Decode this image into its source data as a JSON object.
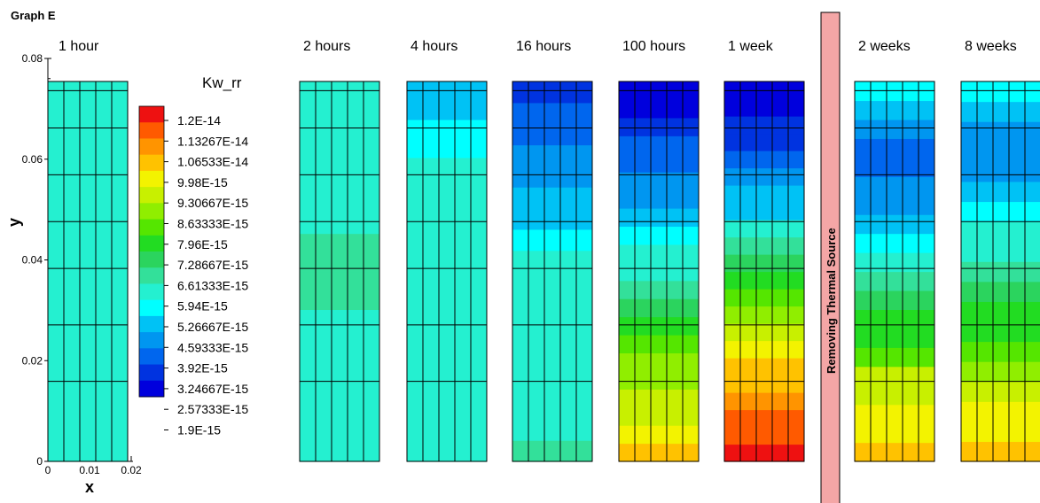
{
  "figure_label": "Graph E",
  "chart_data": {
    "type": "heatmap",
    "title": "",
    "xlabel": "x",
    "ylabel": "y",
    "xlim": [
      0,
      0.02
    ],
    "ylim": [
      0,
      0.08
    ],
    "x_ticks": [
      "0",
      "0.01",
      "0.02"
    ],
    "y_ticks": [
      "0",
      "0.02",
      "0.04",
      "0.06",
      "0.08"
    ],
    "y_tick_values": [
      0,
      0.02,
      0.04,
      0.06,
      0.08
    ],
    "mesh_y_lines": [
      0.0159,
      0.0271,
      0.0383,
      0.0476,
      0.0569,
      0.0662,
      0.0736
    ],
    "mesh_x_lines": [
      0.004,
      0.008,
      0.012,
      0.016
    ],
    "colorbar": {
      "title": "Kw_rr",
      "levels": [
        "1.2E-14",
        "1.13267E-14",
        "1.06533E-14",
        "9.98E-15",
        "9.30667E-15",
        "8.63333E-15",
        "7.96E-15",
        "7.28667E-15",
        "6.61333E-15",
        "5.94E-15",
        "5.26667E-15",
        "4.59333E-15",
        "3.92E-15",
        "3.24667E-15",
        "2.57333E-15",
        "1.9E-15"
      ],
      "colors": [
        "#ee1111",
        "#ff5a00",
        "#ff9400",
        "#ffc200",
        "#f3f300",
        "#c8f000",
        "#90ee00",
        "#55e600",
        "#22dc22",
        "#2bd45e",
        "#33e09a",
        "#24f0d0",
        "#00ffff",
        "#00c2f5",
        "#0096f0",
        "#0066ee",
        "#0033e0",
        "#0000dd"
      ]
    },
    "separator_label": "Removing Thermal Source",
    "panels": [
      {
        "label": "1 hour",
        "values": [
          5.5e-15,
          5.7e-15,
          5.7e-15,
          5.7e-15,
          5.7e-15,
          5.7e-15,
          5.7e-15,
          5.7e-15,
          5.7e-15,
          5.7e-15
        ]
      },
      {
        "label": "2 hours",
        "values": [
          5.6e-15,
          5.7e-15,
          5.7e-15,
          5.7e-15,
          5.9e-15,
          5.9e-15,
          5.7e-15,
          5.7e-15,
          5.7e-15,
          5.5e-15
        ]
      },
      {
        "label": "4 hours",
        "values": [
          5.6e-15,
          5.6e-15,
          5.7e-15,
          5.7e-15,
          5.6e-15,
          5.6e-15,
          5.5e-15,
          5.2e-15,
          5e-15,
          4.4e-15
        ]
      },
      {
        "label": "16 hours",
        "values": [
          6.2e-15,
          5.7e-15,
          5.6e-15,
          5.6e-15,
          5.5e-15,
          5.5e-15,
          5.5e-15,
          5.5e-15,
          5.5e-15,
          5.5e-15,
          4.6e-15,
          4.4e-15,
          4.4e-15,
          3.9e-15,
          3.5e-15,
          3.3e-15,
          2.9e-15,
          2.5e-15
        ]
      },
      {
        "label": "100 hours",
        "values": [
          1.03e-14,
          9.6e-15,
          9.3e-15,
          9e-15,
          8.6e-15,
          8.2e-15,
          7.7e-15,
          7.2e-15,
          6.5e-15,
          6.1e-15,
          5.5e-15,
          5.2e-15,
          4.6e-15,
          4.3e-15,
          3.8e-15,
          3.5e-15,
          3e-15,
          2.9e-15,
          2.6e-15,
          2.1e-15,
          1.9e-15
        ]
      },
      {
        "label": "1 week",
        "values": [
          1.2e-14,
          1.13e-14,
          1.13e-14,
          1.08e-14,
          1.05e-14,
          1.02e-14,
          9.6e-15,
          9e-15,
          8.5e-15,
          7.8e-15,
          7.2e-15,
          6.5e-15,
          5.8e-15,
          5.2e-15,
          4.5e-15,
          4.1e-15,
          3.6e-15,
          3.3e-15,
          2.7e-15,
          2.4e-15,
          2e-15,
          1.9e-15
        ]
      },
      {
        "label": "2 weeks",
        "values": [
          1e-14,
          9.8e-15,
          9.4e-15,
          9.2e-15,
          8.8e-15,
          8e-15,
          7.5e-15,
          7e-15,
          6.5e-15,
          6e-15,
          5.6e-15,
          5e-15,
          4.4e-15,
          3.9e-15,
          3.5e-15,
          3.2e-15,
          3.3e-15,
          3.6e-15,
          4e-15,
          4.8e-15
        ]
      },
      {
        "label": "8 weeks",
        "values": [
          1e-14,
          9.8e-15,
          9.5e-15,
          9e-15,
          8.7e-15,
          8e-15,
          7.5e-15,
          7e-15,
          6.5e-15,
          6e-15,
          5.6e-15,
          5.2e-15,
          4.8e-15,
          4.2e-15,
          3.8e-15,
          3.6e-15,
          3.8e-15,
          4.3e-15,
          4.7e-15
        ]
      }
    ]
  }
}
